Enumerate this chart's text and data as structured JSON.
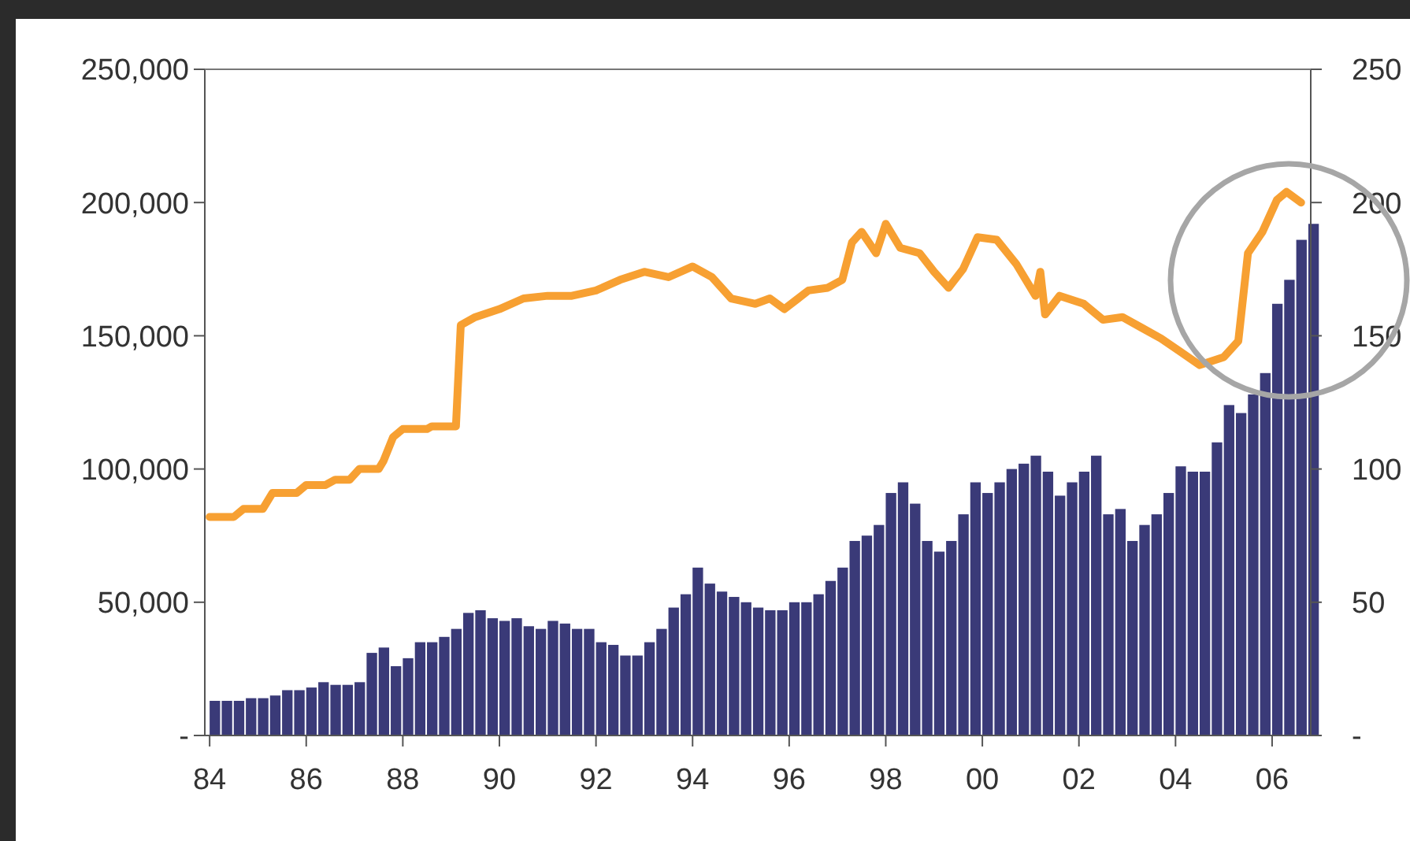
{
  "chart_data": {
    "type": "bar",
    "xlim": [
      1983.9,
      2006.8
    ],
    "xticks": [
      {
        "value": 1984,
        "label": "84"
      },
      {
        "value": 1986,
        "label": "86"
      },
      {
        "value": 1988,
        "label": "88"
      },
      {
        "value": 1990,
        "label": "90"
      },
      {
        "value": 1992,
        "label": "92"
      },
      {
        "value": 1994,
        "label": "94"
      },
      {
        "value": 1996,
        "label": "96"
      },
      {
        "value": 1998,
        "label": "98"
      },
      {
        "value": 2000,
        "label": "00"
      },
      {
        "value": 2002,
        "label": "02"
      },
      {
        "value": 2004,
        "label": "04"
      },
      {
        "value": 2006,
        "label": "06"
      }
    ],
    "ylim": [
      0,
      250000
    ],
    "yticks": [
      {
        "value": 0,
        "label": "-"
      },
      {
        "value": 50000,
        "label": "50,000"
      },
      {
        "value": 100000,
        "label": "100,000"
      },
      {
        "value": 150000,
        "label": "150,000"
      },
      {
        "value": 200000,
        "label": "200,000"
      },
      {
        "value": 250000,
        "label": "250,000"
      }
    ],
    "y2lim": [
      0,
      250
    ],
    "y2ticks": [
      {
        "value": 0,
        "label": "-"
      },
      50,
      100,
      150,
      200,
      250
    ],
    "grid": false,
    "series": [
      {
        "color": "#3a3a78",
        "x": [
          1984,
          1984.25,
          1984.5,
          1984.75,
          1985,
          1985.25,
          1985.5,
          1985.75,
          1986,
          1986.25,
          1986.5,
          1986.75,
          1987,
          1987.25,
          1987.5,
          1987.75,
          1988,
          1988.25,
          1988.5,
          1988.75,
          1989,
          1989.25,
          1989.5,
          1989.75,
          1990,
          1990.25,
          1990.5,
          1990.75,
          1991,
          1991.25,
          1991.5,
          1991.75,
          1992,
          1992.25,
          1992.5,
          1992.75,
          1993,
          1993.25,
          1993.5,
          1993.75,
          1994,
          1994.25,
          1994.5,
          1994.75,
          1995,
          1995.25,
          1995.5,
          1995.75,
          1996,
          1996.25,
          1996.5,
          1996.75,
          1997,
          1997.25,
          1997.5,
          1997.75,
          1998,
          1998.25,
          1998.5,
          1998.75,
          1999,
          1999.25,
          1999.5,
          1999.75,
          2000,
          2000.25,
          2000.5,
          2000.75,
          2001,
          2001.25,
          2001.5,
          2001.75,
          2002,
          2002.25,
          2002.5,
          2002.75,
          2003,
          2003.25,
          2003.5,
          2003.75,
          2004,
          2004.25,
          2004.5,
          2004.75,
          2005,
          2005.25,
          2005.5,
          2005.75,
          2006,
          2006.25,
          2006.5,
          2006.75
        ],
        "values": [
          13000,
          13000,
          13000,
          14000,
          14000,
          15000,
          17000,
          17000,
          18000,
          20000,
          19000,
          19000,
          20000,
          31000,
          33000,
          26000,
          29000,
          35000,
          35000,
          37000,
          40000,
          46000,
          47000,
          44000,
          43000,
          44000,
          41000,
          40000,
          43000,
          42000,
          40000,
          40000,
          35000,
          34000,
          30000,
          30000,
          35000,
          40000,
          48000,
          53000,
          63000,
          57000,
          54000,
          52000,
          50000,
          48000,
          47000,
          47000,
          50000,
          50000,
          53000,
          58000,
          63000,
          73000,
          75000,
          79000,
          91000,
          95000,
          87000,
          73000,
          69000,
          73000,
          83000,
          95000,
          91000,
          95000,
          100000,
          102000,
          105000,
          99000,
          90000,
          95000,
          99000,
          105000,
          83000,
          85000,
          73000,
          79000,
          83000,
          91000,
          101000,
          99000,
          99000,
          110000,
          124000,
          121000,
          128000,
          136000,
          162000,
          171000,
          186000,
          192000
        ]
      },
      {
        "type": "line",
        "axis": "y2",
        "color": "#f7a032",
        "x": [
          1984,
          1984.5,
          1984.7,
          1985.1,
          1985.3,
          1985.8,
          1986,
          1986.4,
          1986.6,
          1986.9,
          1987.1,
          1987.5,
          1987.6,
          1987.8,
          1988,
          1988.5,
          1988.6,
          1989.1,
          1989.2,
          1989.5,
          1990,
          1990.5,
          1991,
          1991.5,
          1992,
          1992.5,
          1993,
          1993.5,
          1994,
          1994.4,
          1994.8,
          1995.3,
          1995.6,
          1995.9,
          1996.4,
          1996.8,
          1997.1,
          1997.3,
          1997.5,
          1997.8,
          1998,
          1998.3,
          1998.7,
          1999,
          1999.3,
          1999.6,
          1999.9,
          2000.3,
          2000.7,
          2001.1,
          2001.2,
          2001.3,
          2001.6,
          2002.1,
          2002.5,
          2002.9,
          2003.3,
          2003.7,
          2004.1,
          2004.5,
          2005,
          2005.3,
          2005.5,
          2005.8,
          2006.1,
          2006.3,
          2006.6
        ],
        "values": [
          82,
          82,
          85,
          85,
          91,
          91,
          94,
          94,
          96,
          96,
          100,
          100,
          103,
          112,
          115,
          115,
          116,
          116,
          154,
          157,
          160,
          164,
          165,
          165,
          167,
          171,
          174,
          172,
          176,
          172,
          164,
          162,
          164,
          160,
          167,
          168,
          171,
          185,
          189,
          181,
          192,
          183,
          181,
          174,
          168,
          175,
          187,
          186,
          177,
          165,
          174,
          158,
          165,
          162,
          156,
          157,
          153,
          149,
          144,
          139,
          142,
          148,
          181,
          189,
          201,
          204,
          200
        ]
      }
    ]
  }
}
